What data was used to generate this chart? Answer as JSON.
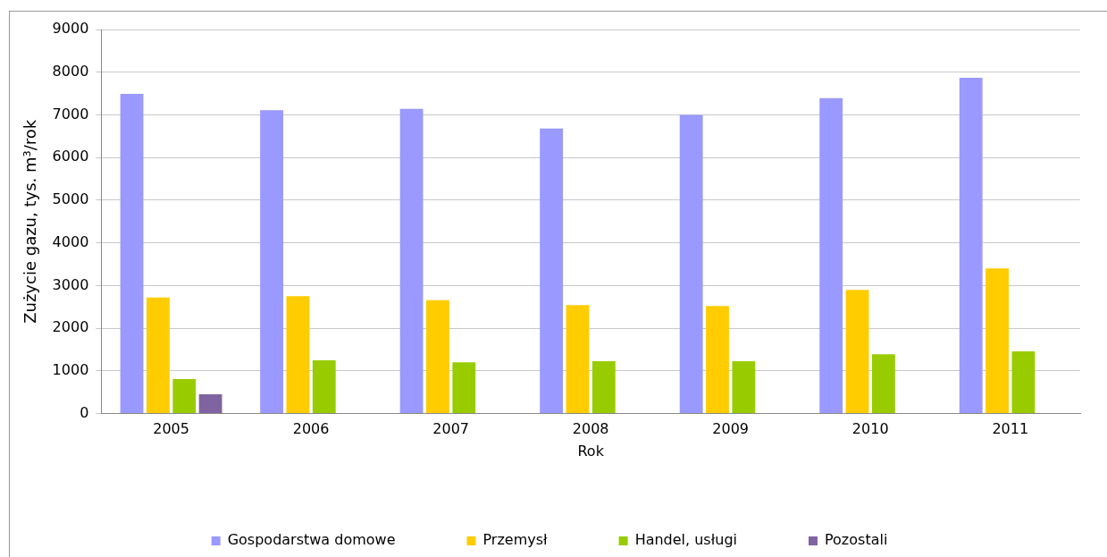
{
  "chart_data": {
    "type": "bar",
    "xlabel": "Rok",
    "ylabel": "Zużycie gazu, tys. m³/rok",
    "categories": [
      "2005",
      "2006",
      "2007",
      "2008",
      "2009",
      "2010",
      "2011"
    ],
    "series": [
      {
        "name": "Gospodarstwa domowe",
        "color": "#9999ff",
        "values": [
          7490,
          7110,
          7140,
          6680,
          7000,
          7390,
          7870
        ]
      },
      {
        "name": "Przemysł",
        "color": "#ffcc00",
        "values": [
          2720,
          2750,
          2660,
          2540,
          2520,
          2900,
          3400
        ]
      },
      {
        "name": "Handel, usługi",
        "color": "#99cc00",
        "values": [
          810,
          1250,
          1200,
          1230,
          1230,
          1390,
          1460
        ]
      },
      {
        "name": "Pozostali",
        "color": "#8064a2",
        "values": [
          450,
          10,
          10,
          10,
          10,
          10,
          10
        ]
      }
    ],
    "ylim": [
      0,
      9000
    ],
    "yticks": [
      0,
      1000,
      2000,
      3000,
      4000,
      5000,
      6000,
      7000,
      8000,
      9000
    ],
    "grid": "y",
    "legend": "bottom"
  }
}
